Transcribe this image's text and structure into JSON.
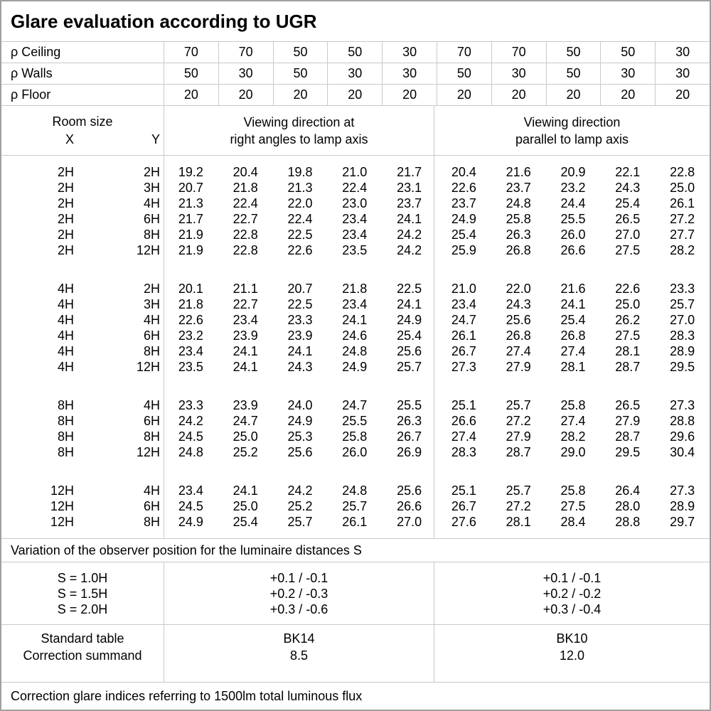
{
  "title": "Glare evaluation according to UGR",
  "colors": {
    "grid": "#c9c9c9",
    "outer_border": "#a0a0a0",
    "text": "#000000",
    "background": "#ffffff"
  },
  "reflectance_rows": [
    {
      "label": "ρ Ceiling",
      "values": [
        "70",
        "70",
        "50",
        "50",
        "30",
        "70",
        "70",
        "50",
        "50",
        "30"
      ]
    },
    {
      "label": "ρ Walls",
      "values": [
        "50",
        "30",
        "50",
        "30",
        "30",
        "50",
        "30",
        "50",
        "30",
        "30"
      ]
    },
    {
      "label": "ρ Floor",
      "values": [
        "20",
        "20",
        "20",
        "20",
        "20",
        "20",
        "20",
        "20",
        "20",
        "20"
      ]
    }
  ],
  "room_header": {
    "title": "Room size",
    "x_label": "X",
    "y_label": "Y"
  },
  "viewing_headers": {
    "left_line1": "Viewing direction at",
    "left_line2": "right angles to lamp axis",
    "right_line1": "Viewing direction",
    "right_line2": "parallel to lamp axis"
  },
  "ugr_table": {
    "blocks": [
      {
        "rows": [
          {
            "x": "2H",
            "y": "2H",
            "values": [
              "19.2",
              "20.4",
              "19.8",
              "21.0",
              "21.7",
              "20.4",
              "21.6",
              "20.9",
              "22.1",
              "22.8"
            ]
          },
          {
            "x": "2H",
            "y": "3H",
            "values": [
              "20.7",
              "21.8",
              "21.3",
              "22.4",
              "23.1",
              "22.6",
              "23.7",
              "23.2",
              "24.3",
              "25.0"
            ]
          },
          {
            "x": "2H",
            "y": "4H",
            "values": [
              "21.3",
              "22.4",
              "22.0",
              "23.0",
              "23.7",
              "23.7",
              "24.8",
              "24.4",
              "25.4",
              "26.1"
            ]
          },
          {
            "x": "2H",
            "y": "6H",
            "values": [
              "21.7",
              "22.7",
              "22.4",
              "23.4",
              "24.1",
              "24.9",
              "25.8",
              "25.5",
              "26.5",
              "27.2"
            ]
          },
          {
            "x": "2H",
            "y": "8H",
            "values": [
              "21.9",
              "22.8",
              "22.5",
              "23.4",
              "24.2",
              "25.4",
              "26.3",
              "26.0",
              "27.0",
              "27.7"
            ]
          },
          {
            "x": "2H",
            "y": "12H",
            "values": [
              "21.9",
              "22.8",
              "22.6",
              "23.5",
              "24.2",
              "25.9",
              "26.8",
              "26.6",
              "27.5",
              "28.2"
            ]
          }
        ]
      },
      {
        "rows": [
          {
            "x": "4H",
            "y": "2H",
            "values": [
              "20.1",
              "21.1",
              "20.7",
              "21.8",
              "22.5",
              "21.0",
              "22.0",
              "21.6",
              "22.6",
              "23.3"
            ]
          },
          {
            "x": "4H",
            "y": "3H",
            "values": [
              "21.8",
              "22.7",
              "22.5",
              "23.4",
              "24.1",
              "23.4",
              "24.3",
              "24.1",
              "25.0",
              "25.7"
            ]
          },
          {
            "x": "4H",
            "y": "4H",
            "values": [
              "22.6",
              "23.4",
              "23.3",
              "24.1",
              "24.9",
              "24.7",
              "25.6",
              "25.4",
              "26.2",
              "27.0"
            ]
          },
          {
            "x": "4H",
            "y": "6H",
            "values": [
              "23.2",
              "23.9",
              "23.9",
              "24.6",
              "25.4",
              "26.1",
              "26.8",
              "26.8",
              "27.5",
              "28.3"
            ]
          },
          {
            "x": "4H",
            "y": "8H",
            "values": [
              "23.4",
              "24.1",
              "24.1",
              "24.8",
              "25.6",
              "26.7",
              "27.4",
              "27.4",
              "28.1",
              "28.9"
            ]
          },
          {
            "x": "4H",
            "y": "12H",
            "values": [
              "23.5",
              "24.1",
              "24.3",
              "24.9",
              "25.7",
              "27.3",
              "27.9",
              "28.1",
              "28.7",
              "29.5"
            ]
          }
        ]
      },
      {
        "rows": [
          {
            "x": "8H",
            "y": "4H",
            "values": [
              "23.3",
              "23.9",
              "24.0",
              "24.7",
              "25.5",
              "25.1",
              "25.7",
              "25.8",
              "26.5",
              "27.3"
            ]
          },
          {
            "x": "8H",
            "y": "6H",
            "values": [
              "24.2",
              "24.7",
              "24.9",
              "25.5",
              "26.3",
              "26.6",
              "27.2",
              "27.4",
              "27.9",
              "28.8"
            ]
          },
          {
            "x": "8H",
            "y": "8H",
            "values": [
              "24.5",
              "25.0",
              "25.3",
              "25.8",
              "26.7",
              "27.4",
              "27.9",
              "28.2",
              "28.7",
              "29.6"
            ]
          },
          {
            "x": "8H",
            "y": "12H",
            "values": [
              "24.8",
              "25.2",
              "25.6",
              "26.0",
              "26.9",
              "28.3",
              "28.7",
              "29.0",
              "29.5",
              "30.4"
            ]
          }
        ]
      },
      {
        "rows": [
          {
            "x": "12H",
            "y": "4H",
            "values": [
              "23.4",
              "24.1",
              "24.2",
              "24.8",
              "25.6",
              "25.1",
              "25.7",
              "25.8",
              "26.4",
              "27.3"
            ]
          },
          {
            "x": "12H",
            "y": "6H",
            "values": [
              "24.5",
              "25.0",
              "25.2",
              "25.7",
              "26.6",
              "26.7",
              "27.2",
              "27.5",
              "28.0",
              "28.9"
            ]
          },
          {
            "x": "12H",
            "y": "8H",
            "values": [
              "24.9",
              "25.4",
              "25.7",
              "26.1",
              "27.0",
              "27.6",
              "28.1",
              "28.4",
              "28.8",
              "29.7"
            ]
          }
        ]
      }
    ]
  },
  "variation_note": "Variation of the observer position for the luminaire distances S",
  "observer_variation": {
    "rows": [
      {
        "s": "S = 1.0H",
        "left": "+0.1 / -0.1",
        "right": "+0.1 / -0.1"
      },
      {
        "s": "S = 1.5H",
        "left": "+0.2 / -0.3",
        "right": "+0.2 / -0.2"
      },
      {
        "s": "S = 2.0H",
        "left": "+0.3 / -0.6",
        "right": "+0.3 / -0.4"
      }
    ]
  },
  "standard_correction": {
    "row_labels": [
      "Standard table",
      "Correction summand"
    ],
    "left": {
      "standard_table": "BK14",
      "correction_summand": "8.5"
    },
    "right": {
      "standard_table": "BK10",
      "correction_summand": "12.0"
    }
  },
  "footer_note": "Correction glare indices referring to 1500lm total luminous flux"
}
